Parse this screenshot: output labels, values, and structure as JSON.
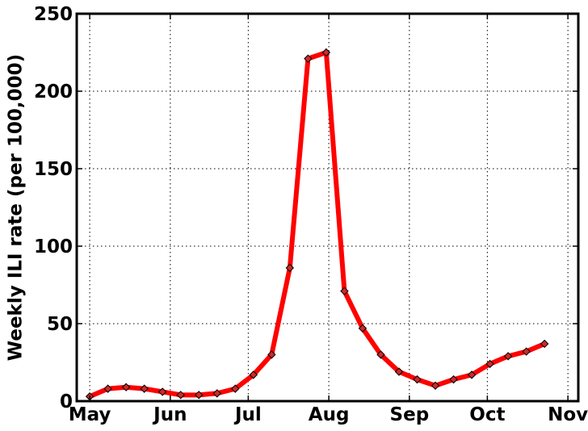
{
  "chart_data": {
    "type": "line",
    "title": "",
    "xlabel": "",
    "ylabel": "Weekly ILI rate (per 100,000)",
    "x_ticks": [
      "May",
      "Jun",
      "Jul",
      "Aug",
      "Sep",
      "Oct",
      "Nov"
    ],
    "xlim": [
      "2009-04-26",
      "2009-11-05"
    ],
    "ylim": [
      0,
      250
    ],
    "y_ticks": [
      0,
      50,
      100,
      150,
      200,
      250
    ],
    "grid": true,
    "series": [
      {
        "color": "#ff0000",
        "marker": "diamond",
        "marker_color": "#cc2a2a",
        "points": [
          [
            "2009-05-01",
            3
          ],
          [
            "2009-05-08",
            8
          ],
          [
            "2009-05-15",
            9
          ],
          [
            "2009-05-22",
            8
          ],
          [
            "2009-05-29",
            6
          ],
          [
            "2009-06-05",
            4
          ],
          [
            "2009-06-12",
            4
          ],
          [
            "2009-06-19",
            5
          ],
          [
            "2009-06-26",
            8
          ],
          [
            "2009-07-03",
            17
          ],
          [
            "2009-07-10",
            30
          ],
          [
            "2009-07-17",
            86
          ],
          [
            "2009-07-24",
            221
          ],
          [
            "2009-07-31",
            225
          ],
          [
            "2009-08-07",
            71
          ],
          [
            "2009-08-14",
            47
          ],
          [
            "2009-08-21",
            30
          ],
          [
            "2009-08-28",
            19
          ],
          [
            "2009-09-04",
            14
          ],
          [
            "2009-09-11",
            10
          ],
          [
            "2009-09-18",
            14
          ],
          [
            "2009-09-25",
            17
          ],
          [
            "2009-10-02",
            24
          ],
          [
            "2009-10-09",
            29
          ],
          [
            "2009-10-16",
            32
          ],
          [
            "2009-10-23",
            37
          ]
        ]
      }
    ]
  }
}
